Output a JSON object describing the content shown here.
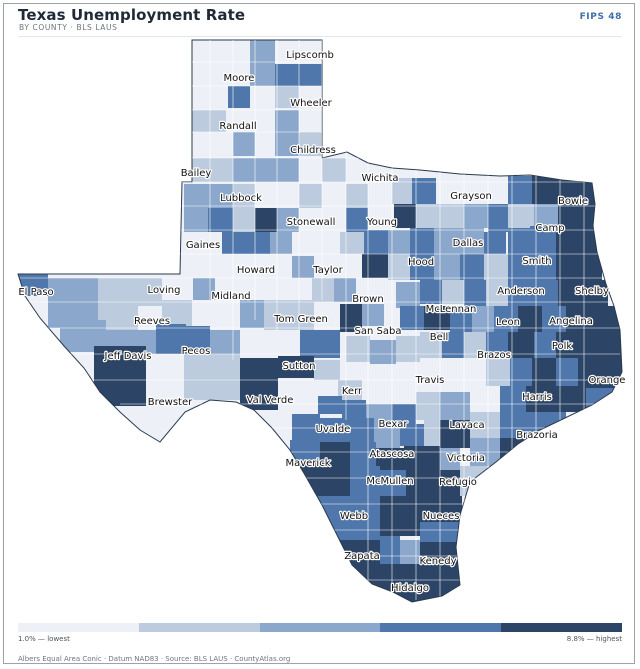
{
  "header": {
    "title": "Texas Unemployment Rate",
    "subtitle": "BY COUNTY · BLS LAUS",
    "fips": "FIPS 48"
  },
  "legend": {
    "low_label": "1.0% — lowest",
    "high_label": "8.8% — highest",
    "colors": [
      "#edf1f7",
      "#bccbdd",
      "#8ba7cb",
      "#4f77ab",
      "#2c4466"
    ]
  },
  "footer": "Albers Equal Area Conic · Datum NAD83 · Source: BLS LAUS · CountyAtlas.org",
  "county_labels": [
    {
      "name": "Lipscomb"
    },
    {
      "name": "Moore"
    },
    {
      "name": "Wheeler"
    },
    {
      "name": "Randall"
    },
    {
      "name": "Childress"
    },
    {
      "name": "Bailey"
    },
    {
      "name": "Wichita"
    },
    {
      "name": "Grayson"
    },
    {
      "name": "Bowie"
    },
    {
      "name": "Lubbock"
    },
    {
      "name": "Stonewall"
    },
    {
      "name": "Young"
    },
    {
      "name": "Camp"
    },
    {
      "name": "Gaines"
    },
    {
      "name": "Dallas"
    },
    {
      "name": "Smith"
    },
    {
      "name": "Hood"
    },
    {
      "name": "Howard"
    },
    {
      "name": "Taylor"
    },
    {
      "name": "El Paso"
    },
    {
      "name": "Loving"
    },
    {
      "name": "Midland"
    },
    {
      "name": "Brown"
    },
    {
      "name": "Anderson"
    },
    {
      "name": "Shelby"
    },
    {
      "name": "McLennan"
    },
    {
      "name": "Reeves"
    },
    {
      "name": "Tom Green"
    },
    {
      "name": "Leon"
    },
    {
      "name": "Angelina"
    },
    {
      "name": "San Saba"
    },
    {
      "name": "Bell"
    },
    {
      "name": "Jeff Davis"
    },
    {
      "name": "Pecos"
    },
    {
      "name": "Polk"
    },
    {
      "name": "Brazos"
    },
    {
      "name": "Sutton"
    },
    {
      "name": "Travis"
    },
    {
      "name": "Orange"
    },
    {
      "name": "Kerr"
    },
    {
      "name": "Brewster"
    },
    {
      "name": "Val Verde"
    },
    {
      "name": "Harris"
    },
    {
      "name": "Bexar"
    },
    {
      "name": "Uvalde"
    },
    {
      "name": "Lavaca"
    },
    {
      "name": "Brazoria"
    },
    {
      "name": "Atascosa"
    },
    {
      "name": "Maverick"
    },
    {
      "name": "Victoria"
    },
    {
      "name": "McMullen"
    },
    {
      "name": "Refugio"
    },
    {
      "name": "Nueces"
    },
    {
      "name": "Webb"
    },
    {
      "name": "Zapata"
    },
    {
      "name": "Kenedy"
    },
    {
      "name": "Hidalgo"
    }
  ]
}
